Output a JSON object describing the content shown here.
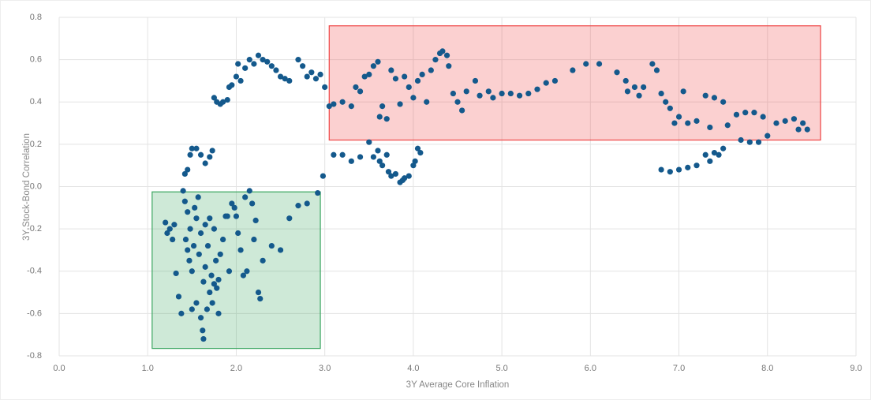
{
  "chart_data": {
    "type": "scatter",
    "xlabel": "3Y Average Core Inflation",
    "ylabel": "3Y Stock-Bond Correlation",
    "color": "#14598c",
    "grid": true,
    "xlim": [
      0,
      9
    ],
    "ylim": [
      -0.8,
      0.8
    ],
    "xticks": [
      {
        "value": 0,
        "label": "0.0"
      },
      {
        "value": 1,
        "label": "1.0"
      },
      {
        "value": 2,
        "label": "2.0"
      },
      {
        "value": 3,
        "label": "3.0"
      },
      {
        "value": 4,
        "label": "4.0"
      },
      {
        "value": 5,
        "label": "5.0"
      },
      {
        "value": 6,
        "label": "6.0"
      },
      {
        "value": 7,
        "label": "7.0"
      },
      {
        "value": 8,
        "label": "8.0"
      },
      {
        "value": 9,
        "label": "9.0"
      }
    ],
    "yticks": [
      -0.8,
      -0.6,
      -0.4,
      -0.2,
      {
        "value": 0,
        "label": "0.0"
      },
      0.2,
      0.4,
      0.6,
      0.8
    ],
    "regions": [
      {
        "xrange": [
          1.05,
          2.95
        ],
        "yrange": [
          -0.765,
          -0.025
        ],
        "color": "#3aa660"
      },
      {
        "xrange": [
          3.05,
          8.6
        ],
        "yrange": [
          0.22,
          0.76
        ],
        "color": "#ee4444"
      }
    ],
    "x": [
      1.2,
      1.22,
      1.25,
      1.28,
      1.3,
      1.32,
      1.35,
      1.38,
      1.4,
      1.42,
      1.43,
      1.45,
      1.45,
      1.47,
      1.48,
      1.5,
      1.5,
      1.52,
      1.53,
      1.55,
      1.55,
      1.57,
      1.58,
      1.6,
      1.6,
      1.62,
      1.63,
      1.63,
      1.65,
      1.65,
      1.67,
      1.68,
      1.7,
      1.7,
      1.72,
      1.73,
      1.75,
      1.75,
      1.77,
      1.78,
      1.8,
      1.8,
      1.82,
      1.85,
      1.88,
      1.9,
      1.92,
      1.95,
      1.98,
      2.0,
      2.02,
      2.05,
      2.08,
      2.1,
      2.12,
      2.15,
      2.18,
      2.2,
      2.22,
      2.25,
      2.27,
      2.3,
      2.4,
      2.5,
      2.6,
      2.7,
      2.8,
      2.92,
      1.42,
      1.45,
      1.48,
      1.5,
      1.55,
      1.6,
      1.65,
      1.7,
      1.73,
      1.75,
      1.78,
      1.82,
      1.85,
      1.9,
      1.92,
      1.95,
      2.0,
      2.02,
      2.05,
      2.1,
      2.15,
      2.2,
      2.25,
      2.3,
      2.35,
      2.4,
      2.45,
      2.5,
      2.55,
      2.6,
      2.7,
      2.75,
      2.8,
      2.85,
      2.9,
      2.95,
      3.0,
      2.98,
      3.1,
      3.2,
      3.3,
      3.4,
      3.5,
      3.55,
      3.6,
      3.62,
      3.65,
      3.7,
      3.72,
      3.75,
      3.8,
      3.85,
      3.88,
      3.9,
      3.95,
      4.0,
      4.02,
      4.05,
      4.08,
      3.05,
      3.1,
      3.2,
      3.3,
      3.35,
      3.4,
      3.45,
      3.5,
      3.55,
      3.6,
      3.62,
      3.65,
      3.7,
      3.75,
      3.8,
      3.85,
      3.9,
      3.95,
      4.0,
      4.05,
      4.1,
      4.15,
      4.2,
      4.25,
      4.3,
      4.33,
      4.38,
      4.4,
      4.45,
      4.5,
      4.55,
      4.6,
      4.7,
      4.75,
      4.85,
      4.9,
      5.0,
      5.1,
      5.2,
      5.3,
      5.4,
      5.5,
      5.6,
      5.8,
      5.95,
      6.1,
      6.3,
      6.4,
      6.42,
      6.5,
      6.55,
      6.6,
      6.7,
      6.75,
      6.8,
      6.85,
      6.9,
      6.95,
      7.0,
      7.05,
      7.1,
      7.2,
      7.3,
      7.35,
      7.4,
      7.5,
      7.55,
      7.65,
      7.75,
      7.85,
      7.95,
      8.0,
      8.1,
      8.2,
      8.3,
      8.35,
      8.4,
      8.45,
      7.7,
      7.8,
      7.9,
      6.8,
      6.9,
      7.0,
      7.1,
      7.2,
      7.3,
      7.35,
      7.4,
      7.45,
      7.5
    ],
    "values": [
      -0.17,
      -0.22,
      -0.2,
      -0.25,
      -0.18,
      -0.41,
      -0.52,
      -0.6,
      -0.02,
      -0.07,
      -0.25,
      -0.3,
      -0.12,
      -0.35,
      -0.2,
      -0.58,
      -0.4,
      -0.28,
      -0.1,
      -0.15,
      -0.55,
      -0.05,
      -0.32,
      -0.62,
      -0.22,
      -0.68,
      -0.72,
      -0.45,
      -0.18,
      -0.38,
      -0.58,
      -0.28,
      -0.5,
      -0.15,
      -0.42,
      -0.55,
      -0.46,
      -0.2,
      -0.35,
      -0.48,
      -0.44,
      -0.6,
      -0.32,
      -0.25,
      -0.14,
      -0.14,
      -0.4,
      -0.08,
      -0.1,
      -0.14,
      -0.22,
      -0.3,
      -0.42,
      -0.05,
      -0.4,
      -0.02,
      -0.08,
      -0.25,
      -0.16,
      -0.5,
      -0.53,
      -0.35,
      -0.28,
      -0.3,
      -0.15,
      -0.09,
      -0.08,
      -0.03,
      0.06,
      0.08,
      0.15,
      0.18,
      0.18,
      0.15,
      0.11,
      0.14,
      0.17,
      0.42,
      0.4,
      0.39,
      0.4,
      0.41,
      0.47,
      0.48,
      0.52,
      0.58,
      0.5,
      0.56,
      0.6,
      0.58,
      0.62,
      0.6,
      0.59,
      0.57,
      0.55,
      0.52,
      0.51,
      0.5,
      0.6,
      0.57,
      0.52,
      0.54,
      0.51,
      0.53,
      0.47,
      0.05,
      0.15,
      0.15,
      0.12,
      0.14,
      0.21,
      0.14,
      0.17,
      0.12,
      0.1,
      0.15,
      0.07,
      0.05,
      0.06,
      0.02,
      0.03,
      0.04,
      0.05,
      0.1,
      0.12,
      0.18,
      0.16,
      0.38,
      0.39,
      0.4,
      0.38,
      0.47,
      0.45,
      0.52,
      0.53,
      0.57,
      0.59,
      0.33,
      0.38,
      0.32,
      0.55,
      0.51,
      0.39,
      0.52,
      0.47,
      0.42,
      0.5,
      0.53,
      0.4,
      0.55,
      0.6,
      0.63,
      0.64,
      0.62,
      0.57,
      0.44,
      0.4,
      0.36,
      0.45,
      0.5,
      0.43,
      0.45,
      0.42,
      0.44,
      0.44,
      0.43,
      0.44,
      0.46,
      0.49,
      0.5,
      0.55,
      0.58,
      0.58,
      0.54,
      0.5,
      0.45,
      0.47,
      0.43,
      0.47,
      0.58,
      0.55,
      0.44,
      0.4,
      0.37,
      0.3,
      0.33,
      0.45,
      0.3,
      0.31,
      0.43,
      0.28,
      0.42,
      0.4,
      0.29,
      0.34,
      0.35,
      0.35,
      0.33,
      0.24,
      0.3,
      0.31,
      0.32,
      0.27,
      0.3,
      0.27,
      0.22,
      0.21,
      0.21,
      0.08,
      0.07,
      0.08,
      0.09,
      0.1,
      0.15,
      0.12,
      0.16,
      0.15,
      0.18
    ]
  }
}
